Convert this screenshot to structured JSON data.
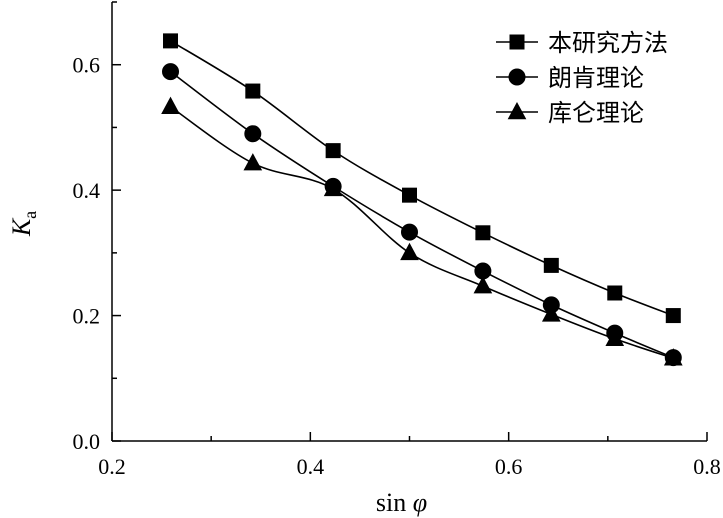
{
  "chart_data": {
    "type": "line",
    "title": "",
    "xlabel": "sin φ",
    "ylabel": "K_a",
    "xlabel_main": "sin ",
    "xlabel_symbol": "φ",
    "ylabel_main": "K",
    "ylabel_sub": "a",
    "xlim": [
      0.2,
      0.8
    ],
    "ylim": [
      0.0,
      0.7
    ],
    "xticks": [
      0.2,
      0.4,
      0.6,
      0.8
    ],
    "yticks": [
      0.0,
      0.2,
      0.4,
      0.6
    ],
    "xtick_labels": [
      "0.2",
      "0.4",
      "0.6",
      "0.8"
    ],
    "ytick_labels": [
      "0.0",
      "0.2",
      "0.4",
      "0.6"
    ],
    "x": [
      0.259,
      0.342,
      0.423,
      0.5,
      0.574,
      0.643,
      0.707,
      0.766
    ],
    "legend_position": "top-right",
    "series": [
      {
        "name": "本研究方法",
        "marker": "square",
        "values": [
          0.638,
          0.558,
          0.463,
          0.392,
          0.332,
          0.28,
          0.236,
          0.2
        ]
      },
      {
        "name": "朗肯理论",
        "marker": "circle",
        "values": [
          0.589,
          0.49,
          0.406,
          0.333,
          0.271,
          0.217,
          0.172,
          0.133
        ]
      },
      {
        "name": "库仑理论",
        "marker": "triangle",
        "values": [
          0.533,
          0.443,
          0.402,
          0.3,
          0.247,
          0.202,
          0.163,
          0.132
        ]
      }
    ]
  }
}
